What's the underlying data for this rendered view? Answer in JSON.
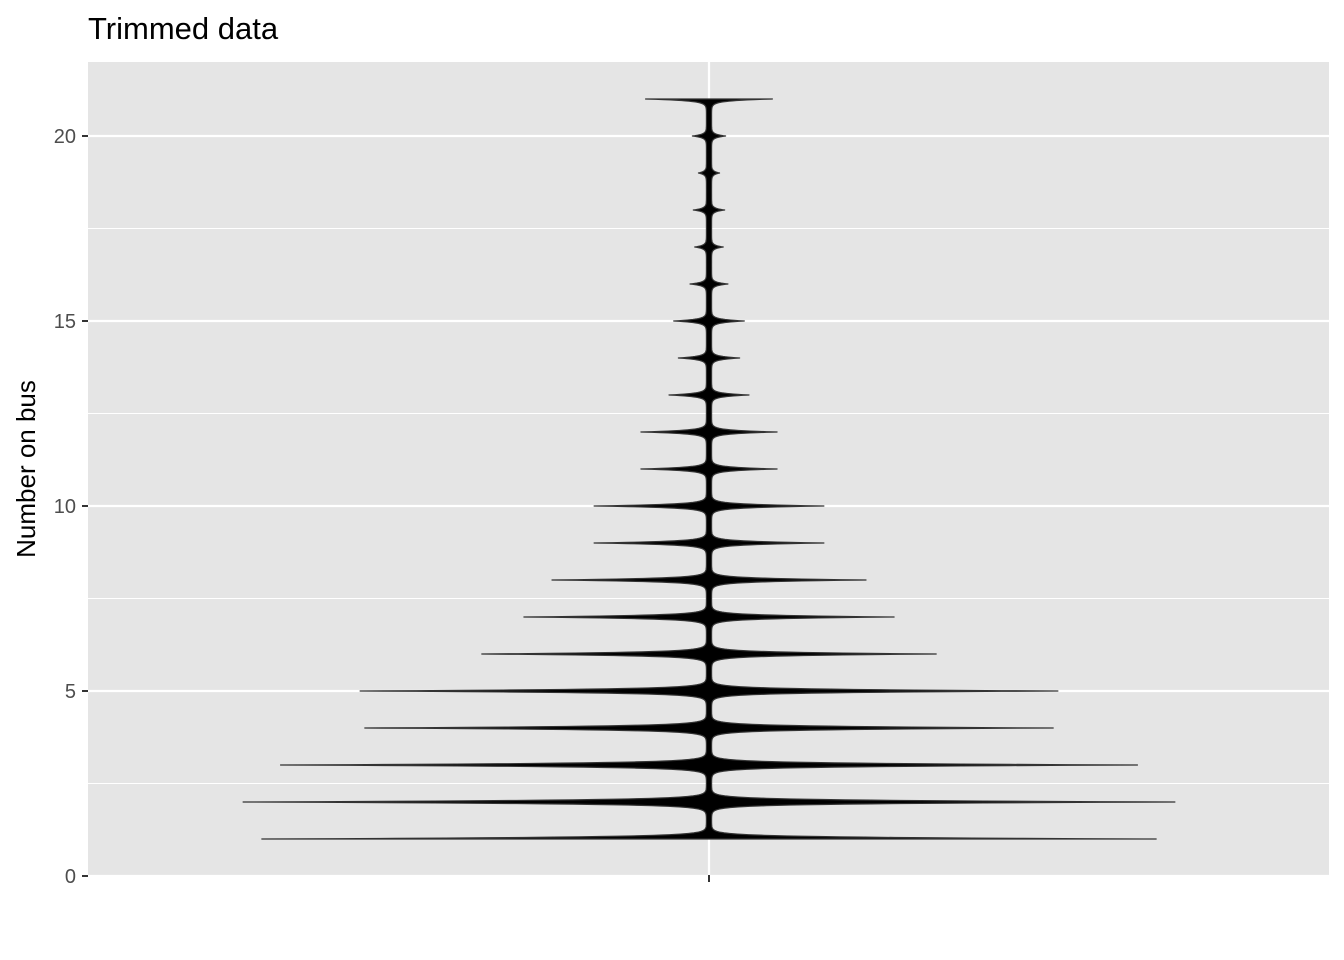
{
  "chart_data": {
    "type": "violin",
    "title": "Trimmed data",
    "xlabel": "",
    "ylabel": "Number on bus",
    "ylim": [
      0,
      22
    ],
    "yticks": [
      0,
      5,
      10,
      15,
      20
    ],
    "x_tick_labels": [
      ""
    ],
    "grid": true,
    "legend": "none",
    "fill_color": "#000000",
    "panel_color": "#e5e5e5",
    "grid_color": "#ffffff",
    "relative_width_by_value": [
      {
        "y": 1,
        "width": 0.95
      },
      {
        "y": 2,
        "width": 0.99
      },
      {
        "y": 3,
        "width": 0.91
      },
      {
        "y": 4,
        "width": 0.73
      },
      {
        "y": 5,
        "width": 0.74
      },
      {
        "y": 6,
        "width": 0.48
      },
      {
        "y": 7,
        "width": 0.39
      },
      {
        "y": 8,
        "width": 0.33
      },
      {
        "y": 9,
        "width": 0.24
      },
      {
        "y": 10,
        "width": 0.24
      },
      {
        "y": 11,
        "width": 0.14
      },
      {
        "y": 12,
        "width": 0.14
      },
      {
        "y": 13,
        "width": 0.08
      },
      {
        "y": 14,
        "width": 0.06
      },
      {
        "y": 15,
        "width": 0.07
      },
      {
        "y": 16,
        "width": 0.035
      },
      {
        "y": 17,
        "width": 0.025
      },
      {
        "y": 18,
        "width": 0.028
      },
      {
        "y": 19,
        "width": 0.017
      },
      {
        "y": 20,
        "width": 0.03
      },
      {
        "y": 21,
        "width": 0.13
      }
    ]
  }
}
